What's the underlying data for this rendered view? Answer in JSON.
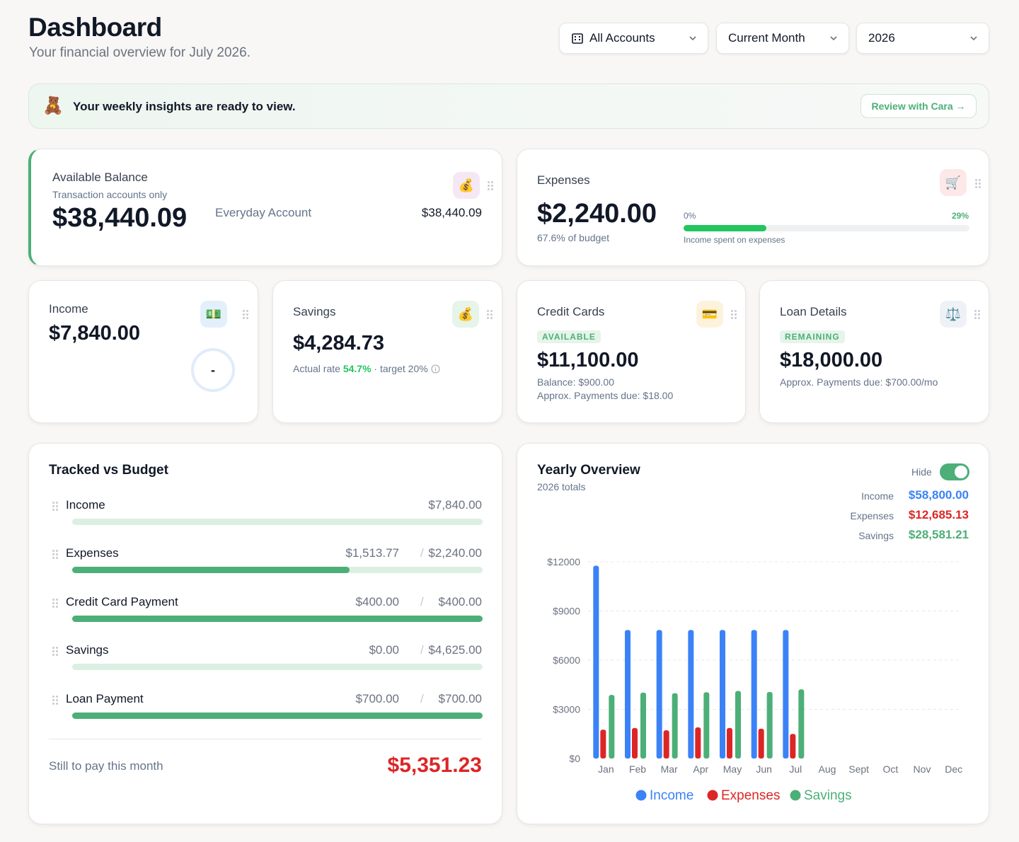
{
  "header": {
    "title": "Dashboard",
    "subtitle": "Your financial overview for July 2026.",
    "filters": {
      "accounts": "All Accounts",
      "period": "Current Month",
      "year": "2026"
    }
  },
  "banner": {
    "text": "Your weekly insights are ready to view.",
    "button": "Review with Cara →"
  },
  "available_balance": {
    "title": "Available Balance",
    "subtitle": "Transaction accounts only",
    "amount": "$38,440.09",
    "account_name": "Everyday Account",
    "account_amount": "$38,440.09",
    "icon": "money-bag-icon"
  },
  "expenses": {
    "title": "Expenses",
    "amount": "$2,240.00",
    "budget_pct": "67.6% of budget",
    "bar_min": "0%",
    "bar_max": "29%",
    "bar_fill_fraction": 0.29,
    "bar_caption": "Income spent on expenses",
    "icon": "shopping-cart-icon"
  },
  "income": {
    "title": "Income",
    "amount": "$7,840.00",
    "ring_text": "-",
    "icon": "cash-icon"
  },
  "savings": {
    "title": "Savings",
    "amount": "$4,284.73",
    "rate_label": "Actual rate",
    "rate_value": "54.7%",
    "target": "· target 20%",
    "icon": "money-bag-icon"
  },
  "credit_cards": {
    "title": "Credit Cards",
    "badge": "AVAILABLE",
    "amount": "$11,100.00",
    "balance": "Balance: $900.00",
    "payments": "Approx. Payments due: $18.00",
    "icon": "credit-card-icon"
  },
  "loan": {
    "title": "Loan Details",
    "badge": "REMAINING",
    "amount": "$18,000.00",
    "payments": "Approx. Payments due: $700.00/mo",
    "icon": "scales-icon"
  },
  "tracked": {
    "title": "Tracked vs Budget",
    "rows": [
      {
        "label": "Income",
        "tracked": "",
        "budget": "$7,840.00",
        "fill": 0
      },
      {
        "label": "Expenses",
        "tracked": "$1,513.77",
        "budget": "$2,240.00",
        "fill": 0.676
      },
      {
        "label": "Credit Card Payment",
        "tracked": "$400.00",
        "budget": "$400.00",
        "fill": 1
      },
      {
        "label": "Savings",
        "tracked": "$0.00",
        "budget": "$4,625.00",
        "fill": 0
      },
      {
        "label": "Loan Payment",
        "tracked": "$700.00",
        "budget": "$700.00",
        "fill": 1
      }
    ],
    "separator": "/",
    "footer_label": "Still to pay this month",
    "footer_amount": "$5,351.23"
  },
  "yearly": {
    "title": "Yearly Overview",
    "subtitle": "2026 totals",
    "toggle_label": "Hide",
    "totals": [
      {
        "label": "Income",
        "value": "$58,800.00",
        "color": "#3b82f6"
      },
      {
        "label": "Expenses",
        "value": "$12,685.13",
        "color": "#dc2626"
      },
      {
        "label": "Savings",
        "value": "$28,581.21",
        "color": "#4caf78"
      }
    ]
  },
  "chart_data": {
    "type": "bar",
    "categories": [
      "Jan",
      "Feb",
      "Mar",
      "Apr",
      "May",
      "Jun",
      "Jul",
      "Aug",
      "Sept",
      "Oct",
      "Nov",
      "Dec"
    ],
    "series": [
      {
        "name": "Income",
        "color": "#3b82f6",
        "values": [
          11760,
          7840,
          7840,
          7840,
          7840,
          7840,
          7840,
          null,
          null,
          null,
          null,
          null
        ]
      },
      {
        "name": "Expenses",
        "color": "#dc2626",
        "values": [
          1760,
          1860,
          1720,
          1900,
          1860,
          1820,
          1500,
          null,
          null,
          null,
          null,
          null
        ]
      },
      {
        "name": "Savings",
        "color": "#4caf78",
        "values": [
          3880,
          4020,
          3980,
          4040,
          4120,
          4060,
          4220,
          null,
          null,
          null,
          null,
          null
        ]
      }
    ],
    "yticks": [
      "$12000",
      "$9000",
      "$6000",
      "$3000",
      "$0"
    ],
    "ylim": [
      0,
      12000
    ],
    "grid": true,
    "legend": "bottom"
  }
}
